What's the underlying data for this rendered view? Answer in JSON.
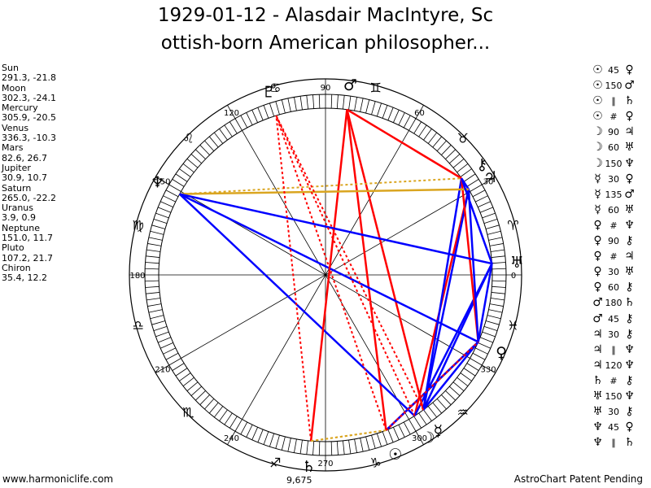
{
  "title": "1929-01-12 - Alasdair MacIntyre, Sc\nottish-born American philosopher...",
  "planets": [
    {
      "name": "Sun",
      "glyph": "☉",
      "value": "291.3, -21.8",
      "lon": 291.3
    },
    {
      "name": "Moon",
      "glyph": "☽",
      "value": "302.3, -24.1",
      "lon": 302.3
    },
    {
      "name": "Mercury",
      "glyph": "☿",
      "value": "305.9, -20.5",
      "lon": 305.9
    },
    {
      "name": "Venus",
      "glyph": "♀",
      "value": "336.3, -10.3",
      "lon": 336.3
    },
    {
      "name": "Mars",
      "glyph": "♂",
      "value": "82.6, 26.7",
      "lon": 82.6
    },
    {
      "name": "Jupiter",
      "glyph": "♃",
      "value": "30.9, 10.7",
      "lon": 30.9
    },
    {
      "name": "Saturn",
      "glyph": "♄",
      "value": "265.0, -22.2",
      "lon": 265.0
    },
    {
      "name": "Uranus",
      "glyph": "♅",
      "value": "3.9, 0.9",
      "lon": 3.9
    },
    {
      "name": "Neptune",
      "glyph": "♆",
      "value": "151.0, 11.7",
      "lon": 151.0
    },
    {
      "name": "Pluto",
      "glyph": "♇",
      "value": "107.2, 21.7",
      "lon": 107.2
    },
    {
      "name": "Chiron",
      "glyph": "⚷",
      "value": "35.4, 12.2",
      "lon": 35.4
    }
  ],
  "degree_labels": [
    "0",
    "30",
    "60",
    "90",
    "120",
    "150",
    "180",
    "210",
    "240",
    "270",
    "300",
    "330"
  ],
  "sign_glyphs": [
    "♈",
    "♉",
    "♊",
    "♋",
    "♌",
    "♍",
    "♎",
    "♏",
    "♐",
    "♑",
    "♒",
    "♓"
  ],
  "extra_labels": {
    "saturn_degree": "9,675"
  },
  "aspects": [
    {
      "p1": "☉",
      "num": "45",
      "p2": "♀"
    },
    {
      "p1": "☉",
      "num": "150",
      "p2": "♂"
    },
    {
      "p1": "☉",
      "num": "∥",
      "p2": "♄"
    },
    {
      "p1": "☉",
      "num": "#",
      "p2": "♀"
    },
    {
      "p1": "☽",
      "num": "90",
      "p2": "♃"
    },
    {
      "p1": "☽",
      "num": "60",
      "p2": "♅"
    },
    {
      "p1": "☽",
      "num": "150",
      "p2": "♆"
    },
    {
      "p1": "☿",
      "num": "30",
      "p2": "♀"
    },
    {
      "p1": "☿",
      "num": "135",
      "p2": "♂"
    },
    {
      "p1": "☿",
      "num": "60",
      "p2": "♅"
    },
    {
      "p1": "♀",
      "num": "#",
      "p2": "♆"
    },
    {
      "p1": "♀",
      "num": "90",
      "p2": "⚷"
    },
    {
      "p1": "♀",
      "num": "#",
      "p2": "♃"
    },
    {
      "p1": "♀",
      "num": "30",
      "p2": "♅"
    },
    {
      "p1": "♀",
      "num": "60",
      "p2": "⚷"
    },
    {
      "p1": "♂",
      "num": "180",
      "p2": "♄"
    },
    {
      "p1": "♂",
      "num": "45",
      "p2": "⚷"
    },
    {
      "p1": "♃",
      "num": "30",
      "p2": "⚷"
    },
    {
      "p1": "♃",
      "num": "∥",
      "p2": "♆"
    },
    {
      "p1": "♃",
      "num": "120",
      "p2": "♆"
    },
    {
      "p1": "♄",
      "num": "#",
      "p2": "⚷"
    },
    {
      "p1": "♅",
      "num": "150",
      "p2": "♆"
    },
    {
      "p1": "♅",
      "num": "30",
      "p2": "⚷"
    },
    {
      "p1": "♆",
      "num": "45",
      "p2": "♀"
    },
    {
      "p1": "♆",
      "num": "∥",
      "p2": "♄"
    }
  ],
  "aspect_lines": [
    {
      "a": "Sun",
      "b": "Venus",
      "color": "#ff0000",
      "style": "solid"
    },
    {
      "a": "Sun",
      "b": "Mars",
      "color": "#ff0000",
      "style": "solid"
    },
    {
      "a": "Sun",
      "b": "Venus",
      "color": "#0000ff",
      "style": "solid"
    },
    {
      "a": "Sun",
      "b": "Saturn",
      "color": "#daa520",
      "style": "dotted"
    },
    {
      "a": "Moon",
      "b": "Jupiter",
      "color": "#ff0000",
      "style": "solid"
    },
    {
      "a": "Moon",
      "b": "Uranus",
      "color": "#0000ff",
      "style": "solid"
    },
    {
      "a": "Moon",
      "b": "Neptune",
      "color": "#0000ff",
      "style": "solid"
    },
    {
      "a": "Mercury",
      "b": "Venus",
      "color": "#0000ff",
      "style": "solid"
    },
    {
      "a": "Mercury",
      "b": "Mars",
      "color": "#ff0000",
      "style": "solid"
    },
    {
      "a": "Mercury",
      "b": "Uranus",
      "color": "#0000ff",
      "style": "solid"
    },
    {
      "a": "Mercury",
      "b": "Jupiter",
      "color": "#0000ff",
      "style": "solid"
    },
    {
      "a": "Mercury",
      "b": "Chiron",
      "color": "#0000ff",
      "style": "solid"
    },
    {
      "a": "Venus",
      "b": "Chiron",
      "color": "#ff0000",
      "style": "solid"
    },
    {
      "a": "Venus",
      "b": "Uranus",
      "color": "#0000ff",
      "style": "solid"
    },
    {
      "a": "Venus",
      "b": "Jupiter",
      "color": "#0000ff",
      "style": "solid"
    },
    {
      "a": "Mars",
      "b": "Saturn",
      "color": "#ff0000",
      "style": "solid"
    },
    {
      "a": "Mars",
      "b": "Chiron",
      "color": "#ff0000",
      "style": "solid"
    },
    {
      "a": "Jupiter",
      "b": "Chiron",
      "color": "#0000ff",
      "style": "solid"
    },
    {
      "a": "Jupiter",
      "b": "Neptune",
      "color": "#daa520",
      "style": "solid"
    },
    {
      "a": "Neptune",
      "b": "Chiron",
      "color": "#daa520",
      "style": "dotted"
    },
    {
      "a": "Uranus",
      "b": "Neptune",
      "color": "#0000ff",
      "style": "solid"
    },
    {
      "a": "Uranus",
      "b": "Chiron",
      "color": "#0000ff",
      "style": "solid"
    },
    {
      "a": "Neptune",
      "b": "Venus",
      "color": "#0000ff",
      "style": "solid"
    },
    {
      "a": "Mercury",
      "b": "Pluto",
      "color": "#ff0000",
      "style": "dotted"
    },
    {
      "a": "Sun",
      "b": "Pluto",
      "color": "#ff0000",
      "style": "dotted"
    },
    {
      "a": "Moon",
      "b": "Pluto",
      "color": "#ff0000",
      "style": "dotted"
    },
    {
      "a": "Saturn",
      "b": "Pluto",
      "color": "#ff0000",
      "style": "dotted"
    },
    {
      "a": "Sun",
      "b": "Venus",
      "color": "#ff0000",
      "style": "dotted"
    },
    {
      "a": "Saturn",
      "b": "Sun",
      "color": "#daa520",
      "style": "dotted"
    }
  ],
  "footer": {
    "left": "www.harmoniclife.com",
    "right": "AstroChart Patent Pending"
  }
}
